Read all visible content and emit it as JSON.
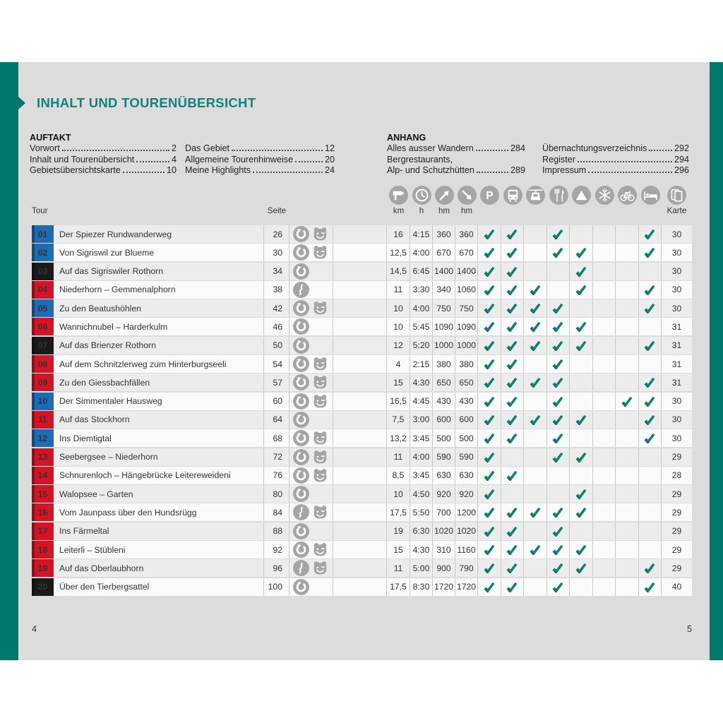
{
  "page": {
    "title": "INHALT UND TOURENÜBERSICHT",
    "footer": {
      "left_page": "4",
      "right_page": "5"
    }
  },
  "colors": {
    "accent_teal": "#0e8476",
    "strip_green": "#00786b",
    "badge_blue": "#1c6cb4",
    "badge_red": "#d41424",
    "badge_black": "#1a1a1a",
    "check_teal": "#0c8373",
    "icon_gray": "#a5a5a5"
  },
  "toc": {
    "auftakt": {
      "heading": "AUFTAKT",
      "entries_col1": [
        {
          "label": "Vorwort",
          "page": "2"
        },
        {
          "label": "Inhalt und Tourenübersicht",
          "page": "4"
        },
        {
          "label": "Gebietsübersichtskarte",
          "page": "10"
        }
      ],
      "entries_col2": [
        {
          "label": "Das Gebiet",
          "page": "12"
        },
        {
          "label": "Allgemeine Tourenhinweise",
          "page": "20"
        },
        {
          "label": "Meine Highlights",
          "page": "24"
        }
      ]
    },
    "anhang": {
      "heading": "ANHANG",
      "entries_col1": [
        {
          "label": "Alles ausser Wandern",
          "page": "284"
        },
        {
          "label": "Bergrestaurants,",
          "page": null
        },
        {
          "label": "Alp- und Schutzhütten",
          "page": "289"
        }
      ],
      "entries_col2": [
        {
          "label": "Übernachtungsverzeichnis",
          "page": "292"
        },
        {
          "label": "Register",
          "page": "294"
        },
        {
          "label": "Impressum",
          "page": "296"
        }
      ]
    }
  },
  "table": {
    "header": {
      "tour_label": "Tour",
      "seite_label": "Seite",
      "stat_columns": [
        {
          "icon": "signpost-icon",
          "label": "km"
        },
        {
          "icon": "clock-icon",
          "label": "h"
        },
        {
          "icon": "ascent-arrow-icon",
          "label": "hm"
        },
        {
          "icon": "descent-arrow-icon",
          "label": "hm"
        }
      ],
      "feature_columns": [
        {
          "icon": "parking-icon"
        },
        {
          "icon": "bus-icon"
        },
        {
          "icon": "cablecar-icon"
        },
        {
          "icon": "restaurant-icon"
        },
        {
          "icon": "peak-icon"
        },
        {
          "icon": "snowflake-icon"
        },
        {
          "icon": "bike-icon"
        },
        {
          "icon": "bed-icon"
        }
      ],
      "karte_column": {
        "icon": "map-icon",
        "label": "Karte"
      }
    },
    "rows": [
      {
        "nr": "01",
        "color": "blue",
        "name": "Der Spiezer Rundwanderweg",
        "seite": "26",
        "route_icons": [
          "loop-route-icon",
          "bear-icon"
        ],
        "km": "16",
        "h": "4:15",
        "hm_up": "360",
        "hm_down": "360",
        "features": [
          1,
          1,
          0,
          1,
          0,
          0,
          0,
          1
        ],
        "karte": "30"
      },
      {
        "nr": "02",
        "color": "blue",
        "name": "Von Sigriswil zur Blueme",
        "seite": "30",
        "route_icons": [
          "loop-route-icon",
          "bear-icon"
        ],
        "km": "12,5",
        "h": "4:00",
        "hm_up": "670",
        "hm_down": "670",
        "features": [
          1,
          1,
          0,
          1,
          1,
          0,
          0,
          1
        ],
        "karte": "30"
      },
      {
        "nr": "03",
        "color": "black",
        "name": "Auf das Sigriswiler Rothorn",
        "seite": "34",
        "route_icons": [
          "loop-route-icon"
        ],
        "km": "14,5",
        "h": "6:45",
        "hm_up": "1400",
        "hm_down": "1400",
        "features": [
          1,
          1,
          0,
          0,
          1,
          0,
          0,
          0
        ],
        "karte": "30"
      },
      {
        "nr": "04",
        "color": "red",
        "name": "Niederhorn – Gemmenalphorn",
        "seite": "38",
        "route_icons": [
          "linear-route-icon"
        ],
        "km": "11",
        "h": "3:30",
        "hm_up": "340",
        "hm_down": "1060",
        "features": [
          1,
          1,
          1,
          0,
          1,
          0,
          0,
          1
        ],
        "karte": "30"
      },
      {
        "nr": "05",
        "color": "blue",
        "name": "Zu den Beatushöhlen",
        "seite": "42",
        "route_icons": [
          "loop-route-icon",
          "bear-icon"
        ],
        "km": "10",
        "h": "4:00",
        "hm_up": "750",
        "hm_down": "750",
        "features": [
          1,
          1,
          1,
          1,
          0,
          0,
          0,
          1
        ],
        "karte": "30"
      },
      {
        "nr": "06",
        "color": "red",
        "name": "Wannichnubel – Harderkulm",
        "seite": "46",
        "route_icons": [
          "loop-route-icon"
        ],
        "km": "10",
        "h": "5:45",
        "hm_up": "1090",
        "hm_down": "1090",
        "features": [
          1,
          1,
          1,
          1,
          1,
          0,
          0,
          0
        ],
        "karte": "31"
      },
      {
        "nr": "07",
        "color": "black",
        "name": "Auf das Brienzer Rothorn",
        "seite": "50",
        "route_icons": [
          "loop-route-icon"
        ],
        "km": "12",
        "h": "5:20",
        "hm_up": "1000",
        "hm_down": "1000",
        "features": [
          1,
          1,
          1,
          1,
          1,
          0,
          0,
          1
        ],
        "karte": "31"
      },
      {
        "nr": "08",
        "color": "red",
        "name": "Auf dem Schnitzlerweg zum Hinterburgseeli",
        "seite": "54",
        "route_icons": [
          "loop-route-icon",
          "bear-icon"
        ],
        "km": "4",
        "h": "2:15",
        "hm_up": "380",
        "hm_down": "380",
        "features": [
          1,
          1,
          0,
          1,
          0,
          0,
          0,
          0
        ],
        "karte": "31"
      },
      {
        "nr": "09",
        "color": "red",
        "name": "Zu den Giessbachfällen",
        "seite": "57",
        "route_icons": [
          "loop-route-icon",
          "bear-icon"
        ],
        "km": "15",
        "h": "4:30",
        "hm_up": "650",
        "hm_down": "650",
        "features": [
          1,
          1,
          1,
          1,
          0,
          0,
          0,
          1
        ],
        "karte": "31"
      },
      {
        "nr": "10",
        "color": "blue",
        "name": "Der Simmentaler Hausweg",
        "seite": "60",
        "route_icons": [
          "loop-route-icon",
          "bear-icon"
        ],
        "km": "16,5",
        "h": "4:45",
        "hm_up": "430",
        "hm_down": "430",
        "features": [
          1,
          1,
          0,
          1,
          0,
          0,
          1,
          1
        ],
        "karte": "30"
      },
      {
        "nr": "11",
        "color": "red",
        "name": "Auf das Stockhorn",
        "seite": "64",
        "route_icons": [
          "loop-route-icon"
        ],
        "km": "7,5",
        "h": "3:00",
        "hm_up": "600",
        "hm_down": "600",
        "features": [
          1,
          1,
          1,
          1,
          1,
          0,
          0,
          1
        ],
        "karte": "30"
      },
      {
        "nr": "12",
        "color": "blue",
        "name": "Ins Diemtigtal",
        "seite": "68",
        "route_icons": [
          "loop-route-icon",
          "bear-icon"
        ],
        "km": "13,2",
        "h": "3:45",
        "hm_up": "500",
        "hm_down": "500",
        "features": [
          1,
          1,
          0,
          1,
          0,
          0,
          0,
          1
        ],
        "karte": "30"
      },
      {
        "nr": "13",
        "color": "red",
        "name": "Seebergsee – Niederhorn",
        "seite": "72",
        "route_icons": [
          "loop-route-icon",
          "bear-icon"
        ],
        "km": "11",
        "h": "4:00",
        "hm_up": "590",
        "hm_down": "590",
        "features": [
          1,
          0,
          0,
          1,
          1,
          0,
          0,
          0
        ],
        "karte": "29"
      },
      {
        "nr": "14",
        "color": "red",
        "name": "Schnurenloch – Hängebrücke Leitereweideni",
        "seite": "76",
        "route_icons": [
          "loop-route-icon",
          "bear-icon"
        ],
        "km": "8,5",
        "h": "3:45",
        "hm_up": "630",
        "hm_down": "630",
        "features": [
          1,
          1,
          0,
          0,
          0,
          0,
          0,
          0
        ],
        "karte": "28"
      },
      {
        "nr": "15",
        "color": "red",
        "name": "Walopsee – Garten",
        "seite": "80",
        "route_icons": [
          "loop-route-icon"
        ],
        "km": "10",
        "h": "4:50",
        "hm_up": "920",
        "hm_down": "920",
        "features": [
          1,
          0,
          0,
          0,
          1,
          0,
          0,
          0
        ],
        "karte": "29"
      },
      {
        "nr": "16",
        "color": "red",
        "name": "Vom Jaunpass über den Hundsrügg",
        "seite": "84",
        "route_icons": [
          "linear-route-icon",
          "bear-icon"
        ],
        "km": "17,5",
        "h": "5:50",
        "hm_up": "700",
        "hm_down": "1200",
        "features": [
          1,
          1,
          1,
          1,
          1,
          0,
          0,
          0
        ],
        "karte": "29"
      },
      {
        "nr": "17",
        "color": "red",
        "name": "Ins Färmeltal",
        "seite": "88",
        "route_icons": [
          "loop-route-icon"
        ],
        "km": "19",
        "h": "6:30",
        "hm_up": "1020",
        "hm_down": "1020",
        "features": [
          1,
          1,
          0,
          1,
          0,
          0,
          0,
          0
        ],
        "karte": "29"
      },
      {
        "nr": "18",
        "color": "red",
        "name": "Leiterli – Stübleni",
        "seite": "92",
        "route_icons": [
          "loop-route-icon",
          "bear-icon"
        ],
        "km": "15",
        "h": "4:30",
        "hm_up": "310",
        "hm_down": "1160",
        "features": [
          1,
          1,
          1,
          1,
          1,
          0,
          0,
          0
        ],
        "karte": "29"
      },
      {
        "nr": "19",
        "color": "red",
        "name": "Auf das Oberlaubhorn",
        "seite": "96",
        "route_icons": [
          "linear-route-icon",
          "bear-icon"
        ],
        "km": "11",
        "h": "5:00",
        "hm_up": "900",
        "hm_down": "790",
        "features": [
          1,
          1,
          0,
          1,
          1,
          0,
          0,
          1
        ],
        "karte": "29"
      },
      {
        "nr": "20",
        "color": "black",
        "name": "Über den Tierbergsattel",
        "seite": "100",
        "route_icons": [
          "loop-route-icon"
        ],
        "km": "17,5",
        "h": "8:30",
        "hm_up": "1720",
        "hm_down": "1720",
        "features": [
          1,
          1,
          0,
          1,
          0,
          0,
          0,
          1
        ],
        "karte": "40"
      }
    ]
  }
}
